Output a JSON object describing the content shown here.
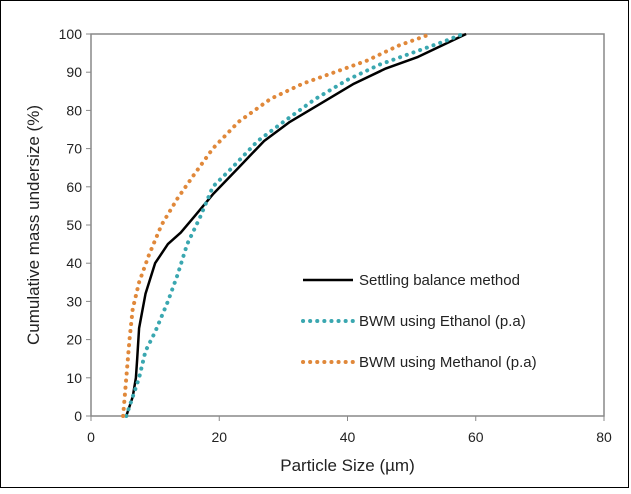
{
  "chart_data": {
    "type": "line",
    "title": "",
    "xlabel": "Particle Size (µm)",
    "ylabel": "Cumulative mass undersize (%)",
    "xlim": [
      0,
      80
    ],
    "ylim": [
      0,
      100
    ],
    "xticks": [
      0,
      20,
      40,
      60,
      80
    ],
    "yticks": [
      0,
      10,
      20,
      30,
      40,
      50,
      60,
      70,
      80,
      90,
      100
    ],
    "grid": false,
    "legend_position": "bottom-right",
    "series": [
      {
        "name": "Settling balance method",
        "color": "#000000",
        "style": "solid",
        "x": [
          5.5,
          6.5,
          7.0,
          7.2,
          7.5,
          8.5,
          10.0,
          12.0,
          14.0,
          16.0,
          19.0,
          23.0,
          27.0,
          31.0,
          36.0,
          41.0,
          46.0,
          51.0,
          56.0,
          58.5
        ],
        "y": [
          0,
          5,
          10,
          15,
          23,
          32,
          40,
          45,
          48,
          52,
          58,
          65,
          72,
          77,
          82,
          87,
          91,
          94,
          98,
          100
        ]
      },
      {
        "name": "BWM using Ethanol (p.a)",
        "color": "#3aa7b0",
        "style": "dotted",
        "x": [
          5.5,
          6.5,
          7.5,
          8.5,
          10.0,
          12.0,
          13.5,
          15.0,
          17.0,
          19.0,
          22.0,
          26.0,
          30.0,
          35.0,
          40.0,
          45.0,
          50.0,
          55.0,
          58.0
        ],
        "y": [
          0,
          5,
          10,
          17,
          22,
          30,
          37,
          45,
          52,
          60,
          65,
          72,
          77,
          83,
          88,
          92,
          95,
          98,
          100
        ]
      },
      {
        "name": "BWM using Methanol (p.a)",
        "color": "#e0883a",
        "style": "dotted",
        "x": [
          5.0,
          5.5,
          6.0,
          6.5,
          7.5,
          9.0,
          11.0,
          13.5,
          16.0,
          19.0,
          23.0,
          28.0,
          33.0,
          38.0,
          43.0,
          48.0,
          53.0
        ],
        "y": [
          0,
          10,
          20,
          28,
          35,
          42,
          50,
          57,
          63,
          70,
          77,
          83,
          87,
          90,
          93,
          97,
          100
        ]
      }
    ]
  }
}
